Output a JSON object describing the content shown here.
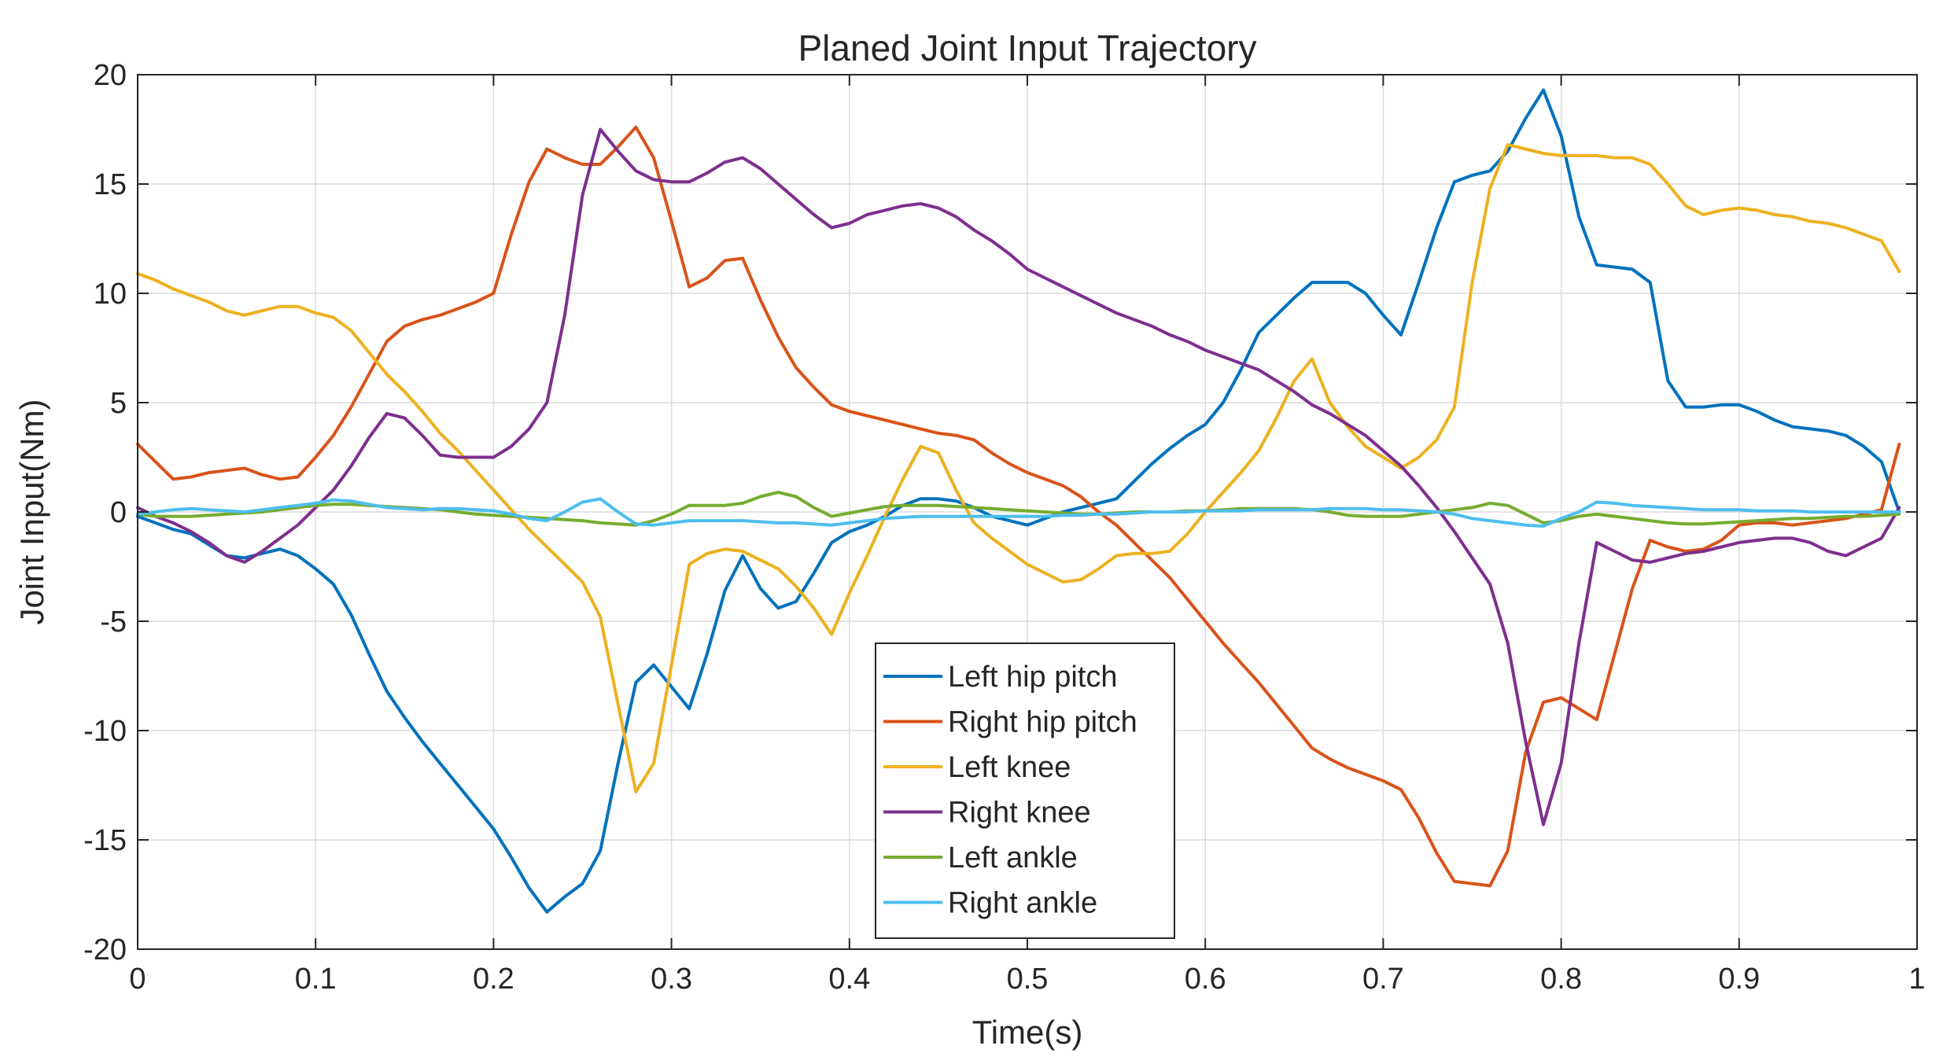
{
  "chart_data": {
    "type": "line",
    "title": "Planed Joint Input Trajectory",
    "xlabel": "Time(s)",
    "ylabel": "Joint Input(Nm)",
    "xlim": [
      0,
      1
    ],
    "ylim": [
      -20,
      20
    ],
    "xticks": [
      0,
      0.1,
      0.2,
      0.3,
      0.4,
      0.5,
      0.6,
      0.7,
      0.8,
      0.9,
      1
    ],
    "xtick_labels": [
      "0",
      "0.1",
      "0.2",
      "0.3",
      "0.4",
      "0.5",
      "0.6",
      "0.7",
      "0.8",
      "0.9",
      "1"
    ],
    "yticks": [
      -20,
      -15,
      -10,
      -5,
      0,
      5,
      10,
      15,
      20
    ],
    "ytick_labels": [
      "-20",
      "-15",
      "-10",
      "-5",
      "0",
      "5",
      "10",
      "15",
      "20"
    ],
    "grid": true,
    "legend_position": "bottom-center",
    "x": [
      0,
      0.01,
      0.02,
      0.03,
      0.04,
      0.05,
      0.06,
      0.07,
      0.08,
      0.09,
      0.1,
      0.11,
      0.12,
      0.13,
      0.14,
      0.15,
      0.16,
      0.17,
      0.18,
      0.19,
      0.2,
      0.21,
      0.22,
      0.23,
      0.24,
      0.25,
      0.26,
      0.27,
      0.28,
      0.29,
      0.3,
      0.31,
      0.32,
      0.33,
      0.34,
      0.35,
      0.36,
      0.37,
      0.38,
      0.39,
      0.4,
      0.41,
      0.42,
      0.43,
      0.44,
      0.45,
      0.46,
      0.47,
      0.48,
      0.49,
      0.5,
      0.51,
      0.52,
      0.53,
      0.54,
      0.55,
      0.56,
      0.57,
      0.58,
      0.59,
      0.6,
      0.61,
      0.62,
      0.63,
      0.64,
      0.65,
      0.66,
      0.67,
      0.68,
      0.69,
      0.7,
      0.71,
      0.72,
      0.73,
      0.74,
      0.75,
      0.76,
      0.77,
      0.78,
      0.79,
      0.8,
      0.81,
      0.82,
      0.83,
      0.84,
      0.85,
      0.86,
      0.87,
      0.88,
      0.89,
      0.9,
      0.91,
      0.92,
      0.93,
      0.94,
      0.95,
      0.96,
      0.97,
      0.98,
      0.99
    ],
    "series": [
      {
        "name": "Left hip pitch",
        "color": "#0072BD",
        "values": [
          -0.2,
          -0.5,
          -0.8,
          -1.0,
          -1.5,
          -2.0,
          -2.1,
          -1.9,
          -1.7,
          -2.0,
          -2.6,
          -3.3,
          -4.7,
          -6.5,
          -8.2,
          -9.4,
          -10.5,
          -11.5,
          -12.5,
          -13.5,
          -14.5,
          -15.8,
          -17.2,
          -18.3,
          -17.6,
          -17.0,
          -15.5,
          -11.5,
          -7.8,
          -7.0,
          -8.0,
          -9.0,
          -6.5,
          -3.6,
          -2.0,
          -3.5,
          -4.4,
          -4.1,
          -2.8,
          -1.4,
          -0.9,
          -0.6,
          -0.2,
          0.3,
          0.6,
          0.6,
          0.5,
          0.2,
          -0.2,
          -0.4,
          -0.6,
          -0.3,
          0.0,
          0.2,
          0.4,
          0.6,
          1.4,
          2.2,
          2.9,
          3.5,
          4.0,
          5.0,
          6.5,
          8.2,
          9.0,
          9.8,
          10.5,
          10.5,
          10.5,
          10.0,
          9.0,
          8.1,
          10.5,
          13.0,
          15.1,
          15.4,
          15.6,
          16.5,
          18.0,
          19.3,
          17.2,
          13.5,
          11.3,
          11.2,
          11.1,
          10.5,
          6.0,
          4.8,
          4.8,
          4.9,
          4.9,
          4.6,
          4.2,
          3.9,
          3.8,
          3.7,
          3.5,
          3.0,
          2.3,
          0.0
        ]
      },
      {
        "name": "Right hip pitch",
        "color": "#D95319",
        "values": [
          3.1,
          2.3,
          1.5,
          1.6,
          1.8,
          1.9,
          2.0,
          1.7,
          1.5,
          1.6,
          2.5,
          3.5,
          4.8,
          6.3,
          7.8,
          8.5,
          8.8,
          9.0,
          9.3,
          9.6,
          10.0,
          12.7,
          15.1,
          16.6,
          16.2,
          15.9,
          15.9,
          16.7,
          17.6,
          16.2,
          13.3,
          10.3,
          10.7,
          11.5,
          11.6,
          9.7,
          8.0,
          6.6,
          5.7,
          4.9,
          4.6,
          4.4,
          4.2,
          4.0,
          3.8,
          3.6,
          3.5,
          3.3,
          2.7,
          2.2,
          1.8,
          1.5,
          1.2,
          0.7,
          0.0,
          -0.6,
          -1.4,
          -2.2,
          -3.0,
          -4.0,
          -5.0,
          -6.0,
          -6.9,
          -7.8,
          -8.8,
          -9.8,
          -10.8,
          -11.3,
          -11.7,
          -12.0,
          -12.3,
          -12.7,
          -14.0,
          -15.6,
          -16.9,
          -17.0,
          -17.1,
          -15.5,
          -11.0,
          -8.7,
          -8.5,
          -9.0,
          -9.5,
          -6.5,
          -3.5,
          -1.3,
          -1.6,
          -1.8,
          -1.7,
          -1.3,
          -0.6,
          -0.5,
          -0.5,
          -0.6,
          -0.5,
          -0.4,
          -0.3,
          -0.1,
          0.1,
          3.1
        ]
      },
      {
        "name": "Left knee",
        "color": "#EDB120",
        "values": [
          10.9,
          10.6,
          10.2,
          9.9,
          9.6,
          9.2,
          9.0,
          9.2,
          9.4,
          9.4,
          9.1,
          8.9,
          8.3,
          7.3,
          6.3,
          5.5,
          4.6,
          3.6,
          2.8,
          1.9,
          1.0,
          0.1,
          -0.8,
          -1.6,
          -2.4,
          -3.2,
          -4.8,
          -8.8,
          -12.8,
          -11.5,
          -7.0,
          -2.4,
          -1.9,
          -1.7,
          -1.8,
          -2.2,
          -2.6,
          -3.4,
          -4.4,
          -5.6,
          -3.7,
          -2.0,
          -0.2,
          1.5,
          3.0,
          2.7,
          1.0,
          -0.5,
          -1.2,
          -1.8,
          -2.4,
          -2.8,
          -3.2,
          -3.1,
          -2.6,
          -2.0,
          -1.9,
          -1.9,
          -1.8,
          -1.0,
          0.0,
          0.9,
          1.8,
          2.8,
          4.3,
          6.0,
          7.0,
          5.0,
          3.9,
          3.0,
          2.5,
          2.0,
          2.5,
          3.3,
          4.8,
          10.5,
          14.8,
          16.8,
          16.6,
          16.4,
          16.3,
          16.3,
          16.3,
          16.2,
          16.2,
          15.9,
          15.0,
          14.0,
          13.6,
          13.8,
          13.9,
          13.8,
          13.6,
          13.5,
          13.3,
          13.2,
          13.0,
          12.7,
          12.4,
          11.0
        ]
      },
      {
        "name": "Right knee",
        "color": "#7E2F8E",
        "values": [
          0.2,
          -0.2,
          -0.5,
          -0.9,
          -1.4,
          -2.0,
          -2.3,
          -1.8,
          -1.2,
          -0.6,
          0.2,
          1.0,
          2.1,
          3.4,
          4.5,
          4.3,
          3.5,
          2.6,
          2.5,
          2.5,
          2.5,
          3.0,
          3.8,
          5.0,
          9.0,
          14.5,
          17.5,
          16.5,
          15.6,
          15.2,
          15.1,
          15.1,
          15.5,
          16.0,
          16.2,
          15.7,
          15.0,
          14.3,
          13.6,
          13.0,
          13.2,
          13.6,
          13.8,
          14.0,
          14.1,
          13.9,
          13.5,
          12.9,
          12.4,
          11.8,
          11.1,
          10.7,
          10.3,
          9.9,
          9.5,
          9.1,
          8.8,
          8.5,
          8.1,
          7.8,
          7.4,
          7.1,
          6.8,
          6.5,
          6.0,
          5.5,
          4.9,
          4.5,
          4.0,
          3.5,
          2.8,
          2.1,
          1.2,
          0.2,
          -0.9,
          -2.1,
          -3.3,
          -6.0,
          -10.5,
          -14.3,
          -11.5,
          -6.0,
          -1.4,
          -1.8,
          -2.2,
          -2.3,
          -2.1,
          -1.9,
          -1.8,
          -1.6,
          -1.4,
          -1.3,
          -1.2,
          -1.2,
          -1.4,
          -1.8,
          -2.0,
          -1.6,
          -1.2,
          0.2
        ]
      },
      {
        "name": "Left ankle",
        "color": "#77AC30",
        "values": [
          -0.1,
          -0.2,
          -0.2,
          -0.2,
          -0.15,
          -0.1,
          -0.05,
          0.0,
          0.1,
          0.2,
          0.3,
          0.35,
          0.35,
          0.3,
          0.25,
          0.2,
          0.15,
          0.1,
          0.0,
          -0.1,
          -0.15,
          -0.2,
          -0.25,
          -0.3,
          -0.35,
          -0.4,
          -0.5,
          -0.55,
          -0.6,
          -0.4,
          -0.1,
          0.3,
          0.3,
          0.3,
          0.4,
          0.7,
          0.9,
          0.7,
          0.2,
          -0.2,
          -0.05,
          0.1,
          0.25,
          0.3,
          0.3,
          0.3,
          0.25,
          0.2,
          0.15,
          0.1,
          0.05,
          0.0,
          -0.05,
          -0.1,
          -0.1,
          -0.05,
          0.0,
          0.0,
          0.0,
          0.05,
          0.05,
          0.1,
          0.15,
          0.15,
          0.15,
          0.15,
          0.1,
          0.0,
          -0.15,
          -0.2,
          -0.2,
          -0.2,
          -0.1,
          0.0,
          0.1,
          0.2,
          0.4,
          0.3,
          -0.1,
          -0.5,
          -0.4,
          -0.2,
          -0.1,
          -0.2,
          -0.3,
          -0.4,
          -0.5,
          -0.55,
          -0.55,
          -0.5,
          -0.45,
          -0.4,
          -0.35,
          -0.3,
          -0.3,
          -0.25,
          -0.2,
          -0.2,
          -0.15,
          -0.1
        ]
      },
      {
        "name": "Right ankle",
        "color": "#4DBEEE",
        "values": [
          -0.1,
          0.0,
          0.1,
          0.15,
          0.1,
          0.05,
          0.0,
          0.1,
          0.2,
          0.3,
          0.4,
          0.55,
          0.5,
          0.35,
          0.2,
          0.15,
          0.1,
          0.15,
          0.15,
          0.1,
          0.05,
          -0.1,
          -0.3,
          -0.4,
          0.0,
          0.45,
          0.6,
          0.0,
          -0.55,
          -0.6,
          -0.5,
          -0.4,
          -0.4,
          -0.4,
          -0.4,
          -0.45,
          -0.5,
          -0.5,
          -0.55,
          -0.6,
          -0.5,
          -0.4,
          -0.3,
          -0.25,
          -0.2,
          -0.2,
          -0.2,
          -0.2,
          -0.2,
          -0.2,
          -0.2,
          -0.2,
          -0.15,
          -0.15,
          -0.1,
          -0.1,
          -0.05,
          0.0,
          0.0,
          0.0,
          0.05,
          0.05,
          0.05,
          0.1,
          0.1,
          0.1,
          0.1,
          0.15,
          0.15,
          0.15,
          0.1,
          0.1,
          0.05,
          0.0,
          -0.1,
          -0.3,
          -0.4,
          -0.5,
          -0.6,
          -0.65,
          -0.3,
          0.0,
          0.45,
          0.4,
          0.3,
          0.25,
          0.2,
          0.15,
          0.1,
          0.1,
          0.1,
          0.05,
          0.05,
          0.05,
          0.0,
          0.0,
          0.0,
          0.0,
          0.0,
          0.0
        ]
      }
    ]
  }
}
